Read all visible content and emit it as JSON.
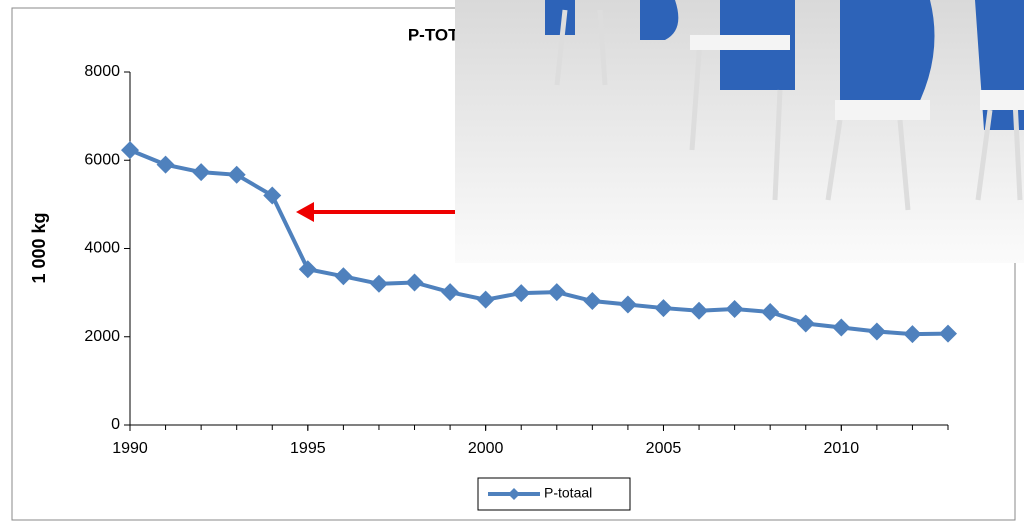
{
  "chart_data": {
    "type": "line",
    "title": "P-TOTAAL",
    "y_label": "1 000 kg",
    "x": [
      1990,
      1991,
      1992,
      1993,
      1994,
      1995,
      1996,
      1997,
      1998,
      1999,
      2000,
      2001,
      2002,
      2003,
      2004,
      2005,
      2006,
      2007,
      2008,
      2009,
      2010,
      2011,
      2012,
      2013
    ],
    "series": [
      {
        "name": "P-totaal",
        "color": "#4f81bd",
        "values": [
          6230,
          5900,
          5730,
          5670,
          5200,
          3530,
          3370,
          3200,
          3230,
          3010,
          2840,
          2990,
          3010,
          2810,
          2730,
          2650,
          2590,
          2630,
          2560,
          2300,
          2210,
          2120,
          2060,
          2070
        ]
      }
    ],
    "xlim": [
      1990,
      2013
    ],
    "xticks": [
      1990,
      1995,
      2000,
      2005,
      2010
    ],
    "ylim": [
      0,
      8000
    ],
    "yticks": [
      0,
      2000,
      4000,
      6000,
      8000
    ],
    "grid": false,
    "legend": "bottom"
  }
}
